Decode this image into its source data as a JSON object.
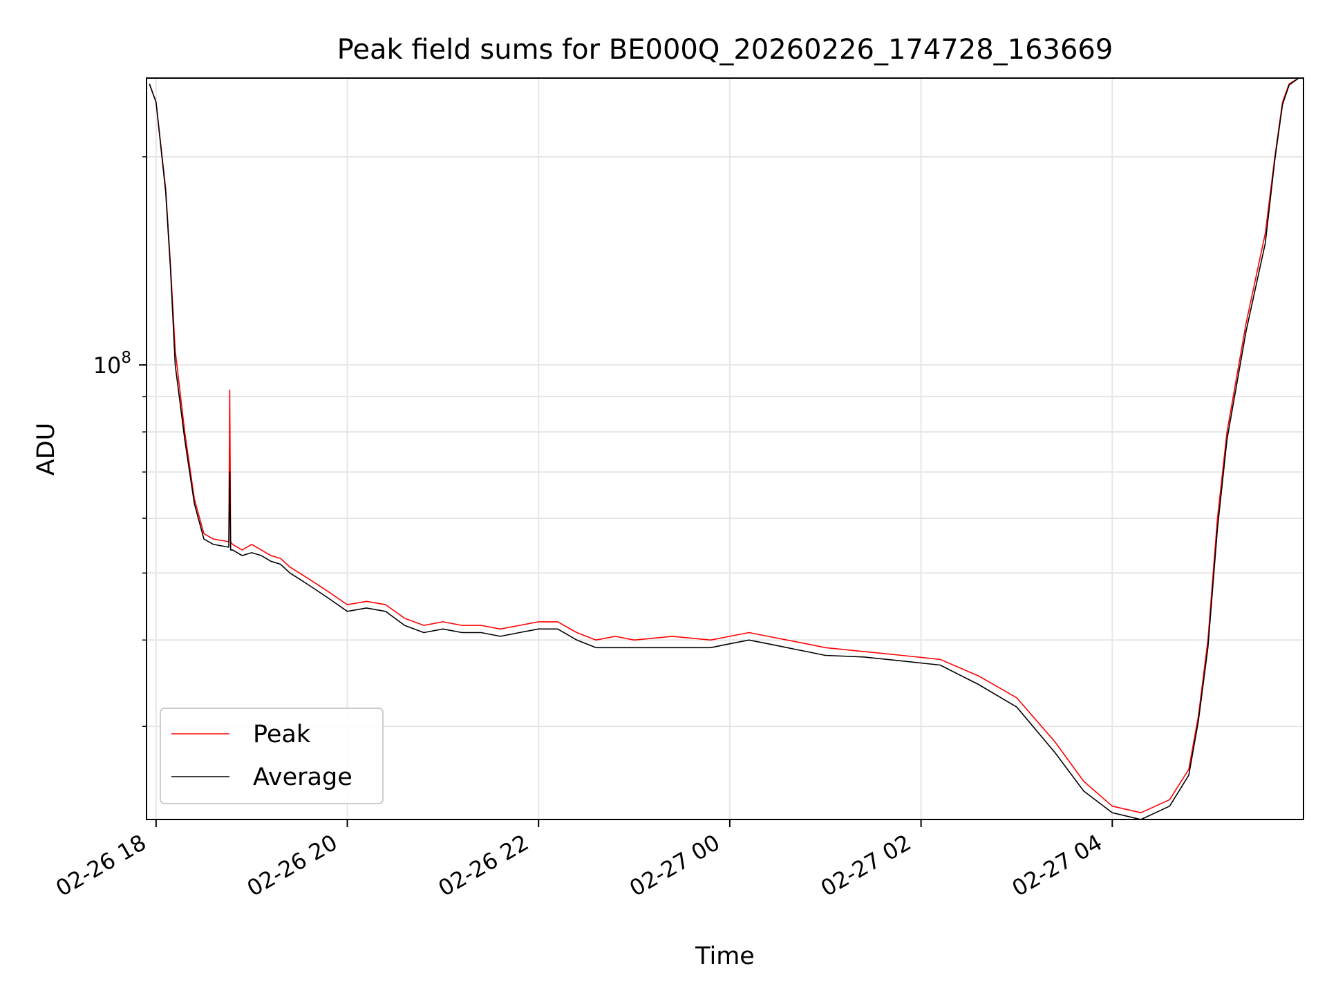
{
  "chart_data": {
    "type": "line",
    "title": "Peak field sums for BE000Q_20260226_174728_163669",
    "xlabel": "Time",
    "ylabel": "ADU",
    "y_scale": "log",
    "ylim": [
      22000000,
      260000000
    ],
    "xlim_hours": [
      -0.1,
      12.0
    ],
    "x_unit": "hours since 02-26 18:00",
    "x_ticks": [
      {
        "hour": 0,
        "label": "02-26 18"
      },
      {
        "hour": 2,
        "label": "02-26 20"
      },
      {
        "hour": 4,
        "label": "02-26 22"
      },
      {
        "hour": 6,
        "label": "02-27 00"
      },
      {
        "hour": 8,
        "label": "02-27 02"
      },
      {
        "hour": 10,
        "label": "02-27 04"
      }
    ],
    "y_major_ticks": [
      {
        "value": 100000000,
        "label_base": "10",
        "label_exp": "8"
      }
    ],
    "y_minor_ticks": [
      30000000,
      40000000,
      50000000,
      60000000,
      70000000,
      80000000,
      90000000,
      200000000
    ],
    "grid": true,
    "legend": {
      "position": "lower-left",
      "entries": [
        {
          "label": "Peak",
          "color": "#ff0000"
        },
        {
          "label": "Average",
          "color": "#000000"
        }
      ]
    },
    "series": [
      {
        "name": "Peak",
        "color": "#ff0000",
        "x_hours": [
          -0.07,
          0.0,
          0.1,
          0.15,
          0.2,
          0.3,
          0.4,
          0.5,
          0.6,
          0.76,
          0.77,
          0.78,
          0.8,
          0.9,
          1.0,
          1.1,
          1.2,
          1.3,
          1.4,
          1.5,
          1.6,
          1.8,
          2.0,
          2.2,
          2.4,
          2.6,
          2.8,
          3.0,
          3.2,
          3.4,
          3.6,
          3.8,
          4.0,
          4.2,
          4.4,
          4.6,
          4.8,
          5.0,
          5.4,
          5.8,
          6.0,
          6.2,
          6.4,
          6.6,
          6.8,
          7.0,
          7.4,
          7.8,
          8.2,
          8.6,
          9.0,
          9.4,
          9.7,
          10.0,
          10.3,
          10.6,
          10.8,
          10.9,
          11.0,
          11.1,
          11.2,
          11.4,
          11.6,
          11.7,
          11.78,
          11.85,
          11.95
        ],
        "values": [
          255000000,
          240000000,
          180000000,
          140000000,
          105000000,
          80000000,
          64000000,
          57000000,
          56000000,
          55500000,
          92000000,
          55500000,
          55000000,
          54000000,
          55000000,
          54000000,
          53000000,
          52500000,
          51000000,
          50000000,
          49000000,
          47000000,
          45000000,
          45500000,
          45000000,
          43000000,
          42000000,
          42500000,
          42000000,
          42000000,
          41500000,
          42000000,
          42500000,
          42500000,
          41000000,
          40000000,
          40500000,
          40000000,
          40500000,
          40000000,
          40500000,
          41000000,
          40500000,
          40000000,
          39500000,
          39000000,
          38500000,
          38000000,
          37500000,
          35500000,
          33000000,
          28500000,
          25000000,
          23000000,
          22500000,
          23500000,
          26000000,
          31000000,
          40000000,
          60000000,
          80000000,
          115000000,
          155000000,
          200000000,
          240000000,
          255000000,
          260000000
        ]
      },
      {
        "name": "Average",
        "color": "#000000",
        "x_hours": [
          -0.07,
          0.0,
          0.1,
          0.15,
          0.2,
          0.3,
          0.4,
          0.5,
          0.6,
          0.76,
          0.77,
          0.78,
          0.8,
          0.9,
          1.0,
          1.1,
          1.2,
          1.3,
          1.4,
          1.5,
          1.6,
          1.8,
          2.0,
          2.2,
          2.4,
          2.6,
          2.8,
          3.0,
          3.2,
          3.4,
          3.6,
          3.8,
          4.0,
          4.2,
          4.4,
          4.6,
          4.8,
          5.0,
          5.4,
          5.8,
          6.0,
          6.2,
          6.4,
          6.6,
          6.8,
          7.0,
          7.4,
          7.8,
          8.2,
          8.6,
          9.0,
          9.4,
          9.7,
          10.0,
          10.3,
          10.6,
          10.8,
          10.9,
          11.0,
          11.1,
          11.2,
          11.4,
          11.6,
          11.7,
          11.78,
          11.85,
          11.95
        ],
        "values": [
          255000000,
          240000000,
          178000000,
          138000000,
          100000000,
          78000000,
          63000000,
          56000000,
          55000000,
          54500000,
          70000000,
          54000000,
          54000000,
          53000000,
          53500000,
          53000000,
          52000000,
          51500000,
          50000000,
          49000000,
          48000000,
          46000000,
          44000000,
          44500000,
          44000000,
          42000000,
          41000000,
          41500000,
          41000000,
          41000000,
          40500000,
          41000000,
          41500000,
          41500000,
          40000000,
          39000000,
          39000000,
          39000000,
          39000000,
          39000000,
          39500000,
          40000000,
          39500000,
          39000000,
          38500000,
          38000000,
          37800000,
          37300000,
          36800000,
          34500000,
          32000000,
          27500000,
          24200000,
          22500000,
          22000000,
          23000000,
          25500000,
          30500000,
          39000000,
          58000000,
          78000000,
          112000000,
          150000000,
          198000000,
          238000000,
          254000000,
          260000000
        ]
      }
    ]
  }
}
